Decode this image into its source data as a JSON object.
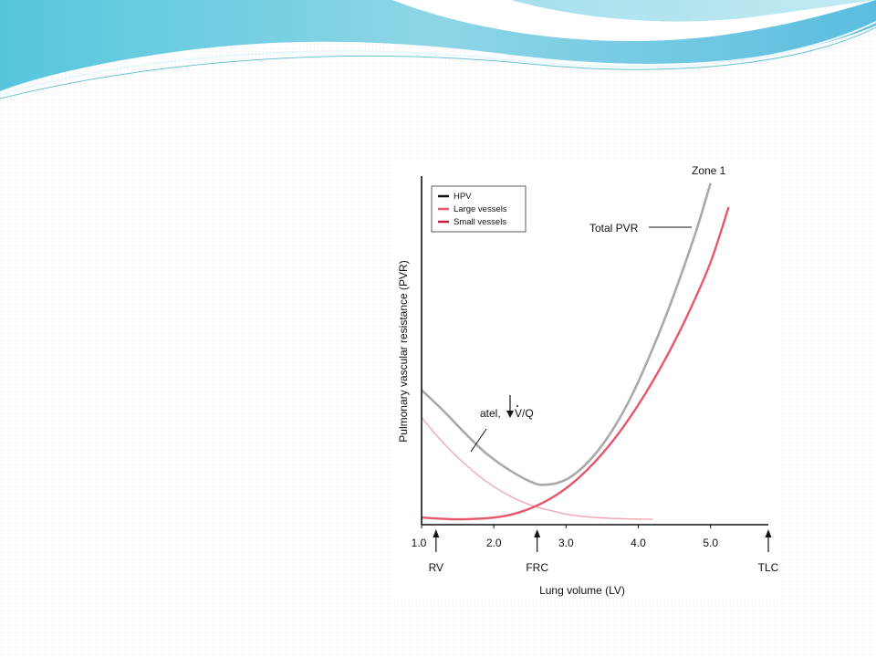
{
  "chart_data": {
    "type": "line",
    "xlabel": "Lung volume (LV)",
    "ylabel": "Pulmonary vascular resistance (PVR)",
    "xlim": [
      1.0,
      5.8
    ],
    "ylim": [
      0,
      100
    ],
    "x_ticks": [
      "1.0",
      "2.0",
      "3.0",
      "4.0",
      "5.0"
    ],
    "x_tick_values": [
      1.0,
      2.0,
      3.0,
      4.0,
      5.0
    ],
    "grid": false,
    "legend": {
      "position": "top-left",
      "entries": [
        {
          "label": "HPV",
          "color": "#111111"
        },
        {
          "label": "Large vessels",
          "color": "#e8566c"
        },
        {
          "label": "Small vessels",
          "color": "#c81e3c"
        }
      ]
    },
    "series": [
      {
        "name": "Total PVR",
        "color": "#a9a9a9",
        "x": [
          1.0,
          1.3,
          1.6,
          1.9,
          2.2,
          2.5,
          2.7,
          3.0,
          3.3,
          3.6,
          3.9,
          4.2,
          4.5,
          4.8,
          5.0
        ],
        "y": [
          38,
          32,
          25.5,
          19.5,
          15,
          11.5,
          10.5,
          12,
          17,
          25,
          36,
          50,
          66,
          84,
          98
        ]
      },
      {
        "name": "",
        "color": "#f2a7b6",
        "x": [
          1.0,
          1.2,
          1.4,
          1.6,
          1.8,
          2.0,
          2.2,
          2.4,
          2.6,
          2.8,
          3.0,
          3.3,
          3.6,
          3.9,
          4.2
        ],
        "y": [
          30,
          25,
          20.5,
          16.5,
          13,
          10,
          7.5,
          5.5,
          4,
          3,
          2,
          1.2,
          0.8,
          0.6,
          0.5
        ]
      },
      {
        "name": "",
        "color": "#e8566c",
        "x": [
          1.0,
          1.5,
          2.0,
          2.3,
          2.6,
          2.9,
          3.2,
          3.5,
          3.8,
          4.1,
          4.4,
          4.7,
          5.0,
          5.25
        ],
        "y": [
          1,
          0.5,
          1,
          2.2,
          4.5,
          8,
          13,
          19.5,
          27.5,
          37,
          48,
          60.5,
          75,
          91
        ]
      }
    ],
    "annotations": [
      {
        "text": "Zone 1",
        "x": 5.0,
        "y": 98
      },
      {
        "text": "Total PVR",
        "x": 4.1,
        "y": 87
      },
      {
        "text": "atel,",
        "x": 1.85,
        "y": 31
      },
      {
        "text": "V/Q",
        "x": 2.3,
        "y": 31
      }
    ],
    "volume_markers": [
      {
        "label": "RV",
        "x": 1.2
      },
      {
        "label": "FRC",
        "x": 2.6
      },
      {
        "label": "TLC",
        "x": 5.8
      }
    ]
  }
}
